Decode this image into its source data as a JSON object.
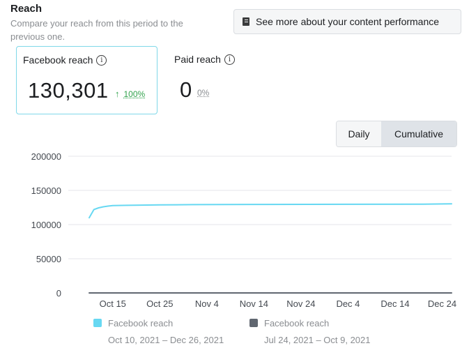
{
  "header": {
    "title": "Reach",
    "subtitle": "Compare your reach from this period to the previous one.",
    "see_more_label": "See more about your content performance",
    "see_more_icon": "book-icon"
  },
  "metrics": [
    {
      "label": "Facebook reach",
      "value": "130,301",
      "change": "100%",
      "direction": "up",
      "selected": true
    },
    {
      "label": "Paid reach",
      "value": "0",
      "change": "0%",
      "selected": false
    }
  ],
  "view_toggle": {
    "options": [
      "Daily",
      "Cumulative"
    ],
    "selected": "Cumulative"
  },
  "colors": {
    "current_series": "#67d8f2",
    "previous_series": "#606770",
    "selected_card_border": "#7fd8e9",
    "positive_change": "#31a24c"
  },
  "chart_data": {
    "type": "line",
    "ylim": [
      0,
      200000
    ],
    "yticks": [
      0,
      50000,
      100000,
      150000,
      200000
    ],
    "ytick_labels": [
      "0",
      "50000",
      "100000",
      "150000",
      "200000"
    ],
    "xlim": [
      "2021-10-10",
      "2021-12-26"
    ],
    "xticks": [
      "2021-10-15",
      "2021-10-25",
      "2021-11-04",
      "2021-11-14",
      "2021-11-24",
      "2021-12-04",
      "2021-12-14",
      "2021-12-24"
    ],
    "xtick_labels": [
      "Oct 15",
      "Oct 25",
      "Nov 4",
      "Nov 14",
      "Nov 24",
      "Dec 4",
      "Dec 14",
      "Dec 24"
    ],
    "grid": true,
    "series": [
      {
        "name": "Facebook reach",
        "range": "Oct 10, 2021 – Dec 26, 2021",
        "color": "#67d8f2",
        "x": [
          "2021-10-10",
          "2021-10-11",
          "2021-10-12",
          "2021-10-13",
          "2021-10-14",
          "2021-10-15",
          "2021-10-18",
          "2021-10-21",
          "2021-10-25",
          "2021-11-01",
          "2021-11-14",
          "2021-12-04",
          "2021-12-20",
          "2021-12-26"
        ],
        "values": [
          110000,
          122000,
          124500,
          126000,
          127000,
          127800,
          128200,
          128500,
          128800,
          129200,
          129500,
          129700,
          129900,
          130301
        ]
      },
      {
        "name": "Facebook reach",
        "range": "Jul 24, 2021 – Oct 9, 2021",
        "color": "#606770",
        "x": [
          "2021-10-10",
          "2021-12-26"
        ],
        "values": [
          0,
          0
        ]
      }
    ]
  }
}
